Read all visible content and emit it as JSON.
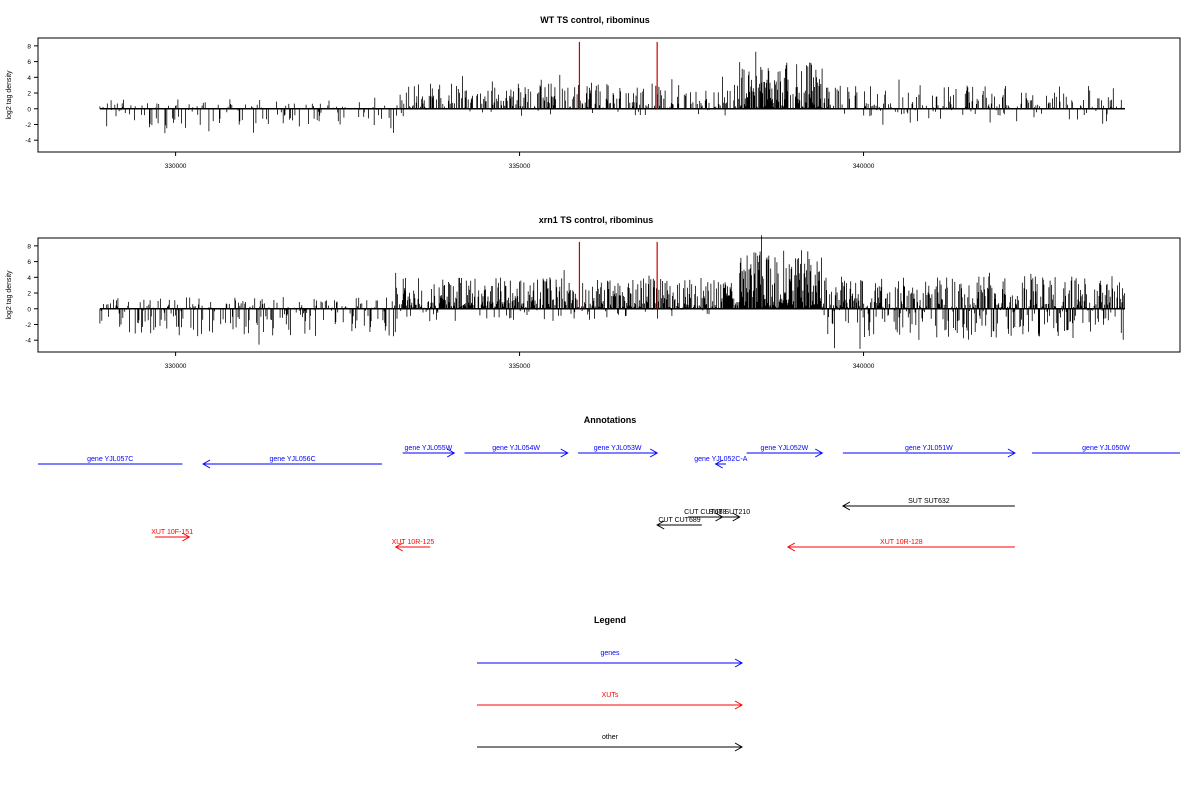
{
  "colors": {
    "genes": "#0000ff",
    "xuts": "#ff0000",
    "other": "#000000",
    "peak": "#cc0000",
    "bars": "#000000"
  },
  "chart_data": [
    {
      "type": "bar",
      "id": "wt",
      "title": "WT TS control, ribominus",
      "ylabel": "log2 tag density",
      "xlim": [
        328000,
        344600
      ],
      "ylim": [
        -5.5,
        9
      ],
      "yticks": [
        -4,
        -2,
        0,
        2,
        4,
        6,
        8
      ],
      "xticks": [
        330000,
        335000,
        340000
      ],
      "xtick_labels": [
        "330000",
        "335000",
        "340000"
      ],
      "data_range": [
        328900,
        343800
      ],
      "peaks": [
        {
          "x": 335870,
          "y": 8.5
        },
        {
          "x": 337000,
          "y": 8.5
        }
      ],
      "regions": [
        {
          "start": 328900,
          "end": 333200,
          "pos": 1.2,
          "neg": -2.5,
          "density": 0.35
        },
        {
          "start": 333200,
          "end": 338200,
          "pos": 3.2,
          "neg": -1.0,
          "density": 0.55
        },
        {
          "start": 338200,
          "end": 339400,
          "pos": 6.0,
          "neg": -0.5,
          "density": 0.9
        },
        {
          "start": 339400,
          "end": 343800,
          "pos": 3.0,
          "neg": -1.8,
          "density": 0.45
        }
      ]
    },
    {
      "type": "bar",
      "id": "xrn1",
      "title": "xrn1 TS control, ribominus",
      "ylabel": "log2 tag density",
      "xlim": [
        328000,
        344600
      ],
      "ylim": [
        -5.5,
        9
      ],
      "yticks": [
        -4,
        -2,
        0,
        2,
        4,
        6,
        8
      ],
      "xticks": [
        330000,
        335000,
        340000
      ],
      "xtick_labels": [
        "330000",
        "335000",
        "340000"
      ],
      "data_range": [
        328900,
        343800
      ],
      "peaks": [
        {
          "x": 335870,
          "y": 8.5
        },
        {
          "x": 337000,
          "y": 8.5
        }
      ],
      "regions": [
        {
          "start": 328900,
          "end": 333200,
          "pos": 1.5,
          "neg": -3.5,
          "density": 0.6
        },
        {
          "start": 333200,
          "end": 338200,
          "pos": 4.0,
          "neg": -1.6,
          "density": 0.9
        },
        {
          "start": 338200,
          "end": 339400,
          "pos": 7.5,
          "neg": -1.0,
          "density": 1.0
        },
        {
          "start": 339400,
          "end": 343800,
          "pos": 4.2,
          "neg": -4.0,
          "density": 0.95
        }
      ]
    }
  ],
  "annotations": {
    "title": "Annotations",
    "features": [
      {
        "label": "gene YJL057C",
        "type": "genes",
        "start": 327500,
        "end": 330100,
        "dir": "none",
        "row": 1
      },
      {
        "label": "gene YJL056C",
        "type": "genes",
        "start": 330400,
        "end": 333000,
        "dir": "left",
        "row": 1
      },
      {
        "label": "gene YJL055W",
        "type": "genes",
        "start": 333300,
        "end": 334050,
        "dir": "right",
        "row": 0
      },
      {
        "label": "gene YJL054W",
        "type": "genes",
        "start": 334200,
        "end": 335700,
        "dir": "right",
        "row": 0
      },
      {
        "label": "gene YJL053W",
        "type": "genes",
        "start": 335850,
        "end": 337000,
        "dir": "right",
        "row": 0
      },
      {
        "label": "gene YJL052C-A",
        "type": "genes",
        "start": 337850,
        "end": 338000,
        "dir": "left",
        "row": 1
      },
      {
        "label": "gene YJL052W",
        "type": "genes",
        "start": 338300,
        "end": 339400,
        "dir": "right",
        "row": 0
      },
      {
        "label": "gene YJL051W",
        "type": "genes",
        "start": 339700,
        "end": 342200,
        "dir": "right",
        "row": 0
      },
      {
        "label": "gene YJL050W",
        "type": "genes",
        "start": 342450,
        "end": 345000,
        "dir": "none",
        "row": 0
      },
      {
        "label": "SUT SUT632",
        "type": "other",
        "start": 339700,
        "end": 342200,
        "dir": "left",
        "row": 2
      },
      {
        "label": "CUT CUT688",
        "type": "other",
        "start": 337450,
        "end": 337950,
        "dir": "right",
        "row": 3
      },
      {
        "label": "SUT SUT210",
        "type": "other",
        "start": 337900,
        "end": 338200,
        "dir": "right",
        "row": 3
      },
      {
        "label": "CUT CUT689",
        "type": "other",
        "start": 337000,
        "end": 337650,
        "dir": "left",
        "row": 4
      },
      {
        "label": "XUT 10F-151",
        "type": "xuts",
        "start": 329700,
        "end": 330200,
        "dir": "right",
        "row": 5
      },
      {
        "label": "XUT 10R-125",
        "type": "xuts",
        "start": 333200,
        "end": 333700,
        "dir": "left",
        "row": 6
      },
      {
        "label": "XUT 10R-128",
        "type": "xuts",
        "start": 338900,
        "end": 342200,
        "dir": "left",
        "row": 6
      }
    ]
  },
  "legend": {
    "title": "Legend",
    "items": [
      {
        "label": "genes",
        "type": "genes"
      },
      {
        "label": "XUTs",
        "type": "xuts"
      },
      {
        "label": "other",
        "type": "other"
      }
    ]
  }
}
